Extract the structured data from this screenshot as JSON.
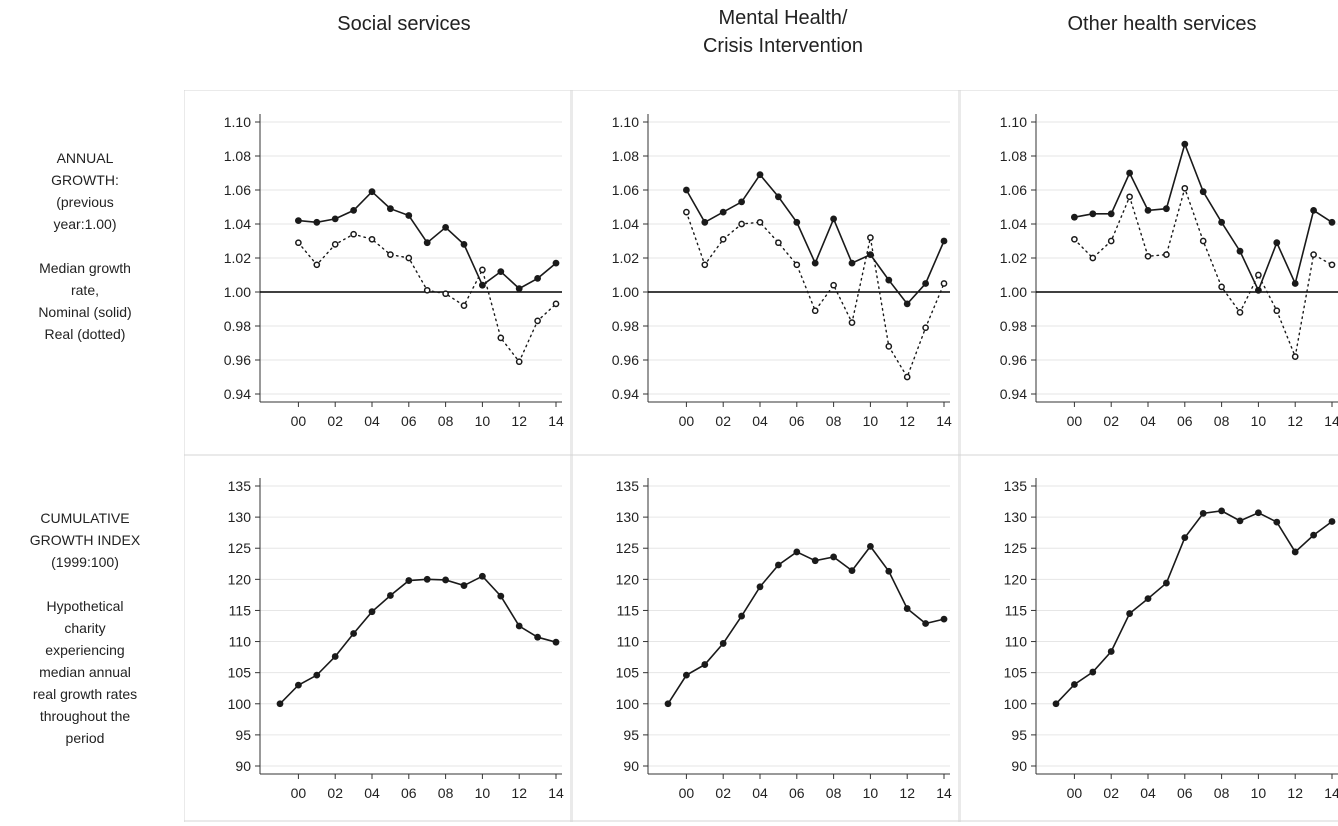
{
  "column_titles": [
    "Social services",
    "Mental Health/\nCrisis Intervention",
    "Other health services"
  ],
  "row_labels": [
    "ANNUAL\nGROWTH:\n(previous\nyear:1.00)\n\nMedian growth\nrate,\nNominal (solid)\nReal (dotted)",
    "CUMULATIVE\nGROWTH  INDEX\n(1999:100)\n\nHypothetical\ncharity\nexperiencing\nmedian annual\nreal growth rates\nthroughout the\nperiod"
  ],
  "chart_data": [
    {
      "type": "line",
      "panel": "annual",
      "column": "Social services",
      "x": [
        2000,
        2001,
        2002,
        2003,
        2004,
        2005,
        2006,
        2007,
        2008,
        2009,
        2010,
        2011,
        2012,
        2013,
        2014
      ],
      "x_tick_labels": [
        "00",
        "02",
        "04",
        "06",
        "08",
        "10",
        "12",
        "14"
      ],
      "ylim": [
        0.94,
        1.1
      ],
      "y_tick_labels": [
        "1.10",
        "1.08",
        "1.06",
        "1.04",
        "1.02",
        "1.00",
        "0.98",
        "0.96",
        "0.94"
      ],
      "reference_line": 1.0,
      "grid": true,
      "series": [
        {
          "style": "solid",
          "values": [
            1.042,
            1.041,
            1.043,
            1.048,
            1.059,
            1.049,
            1.045,
            1.029,
            1.038,
            1.028,
            1.004,
            1.012,
            1.002,
            1.008,
            1.017
          ]
        },
        {
          "style": "dotted",
          "values": [
            1.029,
            1.016,
            1.028,
            1.034,
            1.031,
            1.022,
            1.02,
            1.001,
            0.999,
            0.992,
            1.013,
            0.973,
            0.959,
            0.983,
            0.993
          ]
        }
      ]
    },
    {
      "type": "line",
      "panel": "annual",
      "column": "Mental Health/Crisis Intervention",
      "x": [
        2000,
        2001,
        2002,
        2003,
        2004,
        2005,
        2006,
        2007,
        2008,
        2009,
        2010,
        2011,
        2012,
        2013,
        2014
      ],
      "x_tick_labels": [
        "00",
        "02",
        "04",
        "06",
        "08",
        "10",
        "12",
        "14"
      ],
      "ylim": [
        0.94,
        1.1
      ],
      "y_tick_labels": [
        "1.10",
        "1.08",
        "1.06",
        "1.04",
        "1.02",
        "1.00",
        "0.98",
        "0.96",
        "0.94"
      ],
      "reference_line": 1.0,
      "grid": true,
      "series": [
        {
          "style": "solid",
          "values": [
            1.06,
            1.041,
            1.047,
            1.053,
            1.069,
            1.056,
            1.041,
            1.017,
            1.043,
            1.017,
            1.022,
            1.007,
            0.993,
            1.005,
            1.03
          ]
        },
        {
          "style": "dotted",
          "values": [
            1.047,
            1.016,
            1.031,
            1.04,
            1.041,
            1.029,
            1.016,
            0.989,
            1.004,
            0.982,
            1.032,
            0.968,
            0.95,
            0.979,
            1.005
          ]
        }
      ]
    },
    {
      "type": "line",
      "panel": "annual",
      "column": "Other health services",
      "x": [
        2000,
        2001,
        2002,
        2003,
        2004,
        2005,
        2006,
        2007,
        2008,
        2009,
        2010,
        2011,
        2012,
        2013,
        2014
      ],
      "x_tick_labels": [
        "00",
        "02",
        "04",
        "06",
        "08",
        "10",
        "12",
        "14"
      ],
      "ylim": [
        0.94,
        1.1
      ],
      "y_tick_labels": [
        "1.10",
        "1.08",
        "1.06",
        "1.04",
        "1.02",
        "1.00",
        "0.98",
        "0.96",
        "0.94"
      ],
      "reference_line": 1.0,
      "grid": true,
      "series": [
        {
          "style": "solid",
          "values": [
            1.044,
            1.046,
            1.046,
            1.07,
            1.048,
            1.049,
            1.087,
            1.059,
            1.041,
            1.024,
            1.001,
            1.029,
            1.005,
            1.048,
            1.041
          ]
        },
        {
          "style": "dotted",
          "values": [
            1.031,
            1.02,
            1.03,
            1.056,
            1.021,
            1.022,
            1.061,
            1.03,
            1.003,
            0.988,
            1.01,
            0.989,
            0.962,
            1.022,
            1.016
          ]
        }
      ]
    },
    {
      "type": "line",
      "panel": "cumulative",
      "column": "Social services",
      "x": [
        1999,
        2000,
        2001,
        2002,
        2003,
        2004,
        2005,
        2006,
        2007,
        2008,
        2009,
        2010,
        2011,
        2012,
        2013,
        2014
      ],
      "x_tick_labels": [
        "00",
        "02",
        "04",
        "06",
        "08",
        "10",
        "12",
        "14"
      ],
      "ylim": [
        90,
        135
      ],
      "y_tick_labels": [
        "135",
        "130",
        "125",
        "120",
        "115",
        "110",
        "105",
        "100",
        "95",
        "90"
      ],
      "grid": true,
      "series": [
        {
          "style": "solid",
          "values": [
            100,
            103,
            104.6,
            107.6,
            111.3,
            114.8,
            117.4,
            119.8,
            120.0,
            119.9,
            119.0,
            120.5,
            117.3,
            112.5,
            110.7,
            109.9
          ]
        }
      ]
    },
    {
      "type": "line",
      "panel": "cumulative",
      "column": "Mental Health/Crisis Intervention",
      "x": [
        1999,
        2000,
        2001,
        2002,
        2003,
        2004,
        2005,
        2006,
        2007,
        2008,
        2009,
        2010,
        2011,
        2012,
        2013,
        2014
      ],
      "x_tick_labels": [
        "00",
        "02",
        "04",
        "06",
        "08",
        "10",
        "12",
        "14"
      ],
      "ylim": [
        90,
        135
      ],
      "y_tick_labels": [
        "135",
        "130",
        "125",
        "120",
        "115",
        "110",
        "105",
        "100",
        "95",
        "90"
      ],
      "grid": true,
      "series": [
        {
          "style": "solid",
          "values": [
            100,
            104.6,
            106.3,
            109.7,
            114.1,
            118.8,
            122.3,
            124.4,
            123.0,
            123.6,
            121.4,
            125.3,
            121.3,
            115.3,
            112.9,
            113.6
          ]
        }
      ]
    },
    {
      "type": "line",
      "panel": "cumulative",
      "column": "Other health services",
      "x": [
        1999,
        2000,
        2001,
        2002,
        2003,
        2004,
        2005,
        2006,
        2007,
        2008,
        2009,
        2010,
        2011,
        2012,
        2013,
        2014
      ],
      "x_tick_labels": [
        "00",
        "02",
        "04",
        "06",
        "08",
        "10",
        "12",
        "14"
      ],
      "ylim": [
        90,
        135
      ],
      "y_tick_labels": [
        "135",
        "130",
        "125",
        "120",
        "115",
        "110",
        "105",
        "100",
        "95",
        "90"
      ],
      "grid": true,
      "series": [
        {
          "style": "solid",
          "values": [
            100,
            103.1,
            105.1,
            108.4,
            114.5,
            116.9,
            119.4,
            126.7,
            130.6,
            131.0,
            129.4,
            130.7,
            129.2,
            124.4,
            127.1,
            129.3
          ]
        }
      ]
    }
  ],
  "colors": {
    "line": "#1a1a1a",
    "grid": "#e6e6e6",
    "border": "#d4d4d4",
    "axis": "#333333"
  }
}
